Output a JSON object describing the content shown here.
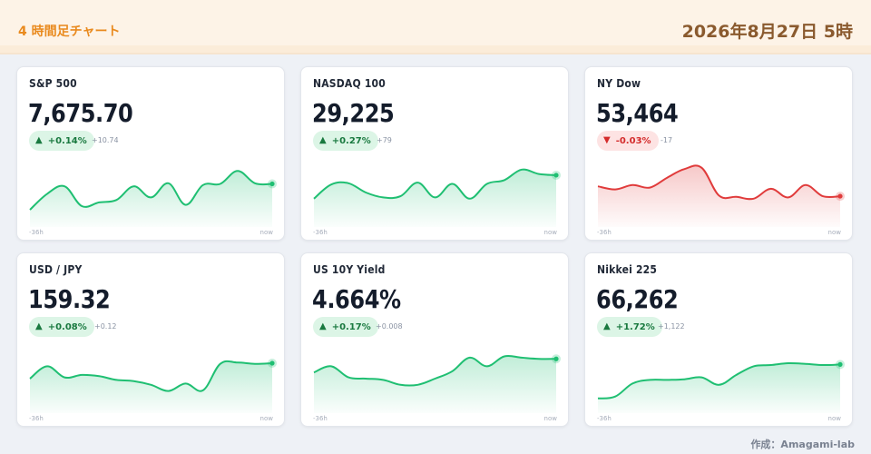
{
  "header": {
    "title": "4 時間足チャート",
    "datetime": "2026年8月27日 5時"
  },
  "footer": {
    "credit": "作成：Amagami-lab"
  },
  "colors": {
    "up": "#1fbf72",
    "down": "#e03b3b"
  },
  "icons": {
    "up": "triangle-up-icon",
    "down": "triangle-down-icon"
  },
  "cards": [
    {
      "name": "S&P 500",
      "value": "7,675.70",
      "pct": "+0.14%",
      "abs": "+10.74",
      "direction": "up",
      "axis_start": "-36h",
      "axis_end": "now"
    },
    {
      "name": "NASDAQ 100",
      "value": "29,225",
      "pct": "+0.27%",
      "abs": "+79",
      "direction": "up",
      "axis_start": "-36h",
      "axis_end": "now"
    },
    {
      "name": "NY Dow",
      "value": "53,464",
      "pct": "-0.03%",
      "abs": "-17",
      "direction": "down",
      "axis_start": "-36h",
      "axis_end": "now"
    },
    {
      "name": "USD / JPY",
      "value": "159.32",
      "pct": "+0.08%",
      "abs": "+0.12",
      "direction": "up",
      "axis_start": "-36h",
      "axis_end": "now"
    },
    {
      "name": "US 10Y Yield",
      "value": "4.664%",
      "pct": "+0.17%",
      "abs": "+0.008",
      "direction": "up",
      "axis_start": "-36h",
      "axis_end": "now"
    },
    {
      "name": "Nikkei 225",
      "value": "66,262",
      "pct": "+1.72%",
      "abs": "+1,122",
      "direction": "up",
      "axis_start": "-36h",
      "axis_end": "now"
    }
  ],
  "chart_data": [
    {
      "type": "area",
      "series": [
        {
          "values": [
            22,
            48,
            60,
            28,
            34,
            38,
            60,
            42,
            65,
            30,
            62,
            64,
            85,
            65,
            64
          ]
        }
      ]
    },
    {
      "type": "area",
      "series": [
        {
          "values": [
            40,
            63,
            65,
            50,
            42,
            44,
            66,
            42,
            64,
            40,
            64,
            70,
            87,
            80,
            78
          ]
        }
      ]
    },
    {
      "type": "area",
      "series": [
        {
          "values": [
            60,
            55,
            62,
            58,
            74,
            88,
            90,
            45,
            43,
            40,
            56,
            42,
            62,
            44,
            44
          ]
        }
      ]
    },
    {
      "type": "area",
      "series": [
        {
          "values": [
            50,
            70,
            52,
            56,
            54,
            48,
            46,
            40,
            30,
            42,
            31,
            74,
            76,
            74,
            75
          ]
        }
      ]
    },
    {
      "type": "area",
      "series": [
        {
          "values": [
            60,
            70,
            52,
            50,
            48,
            40,
            40,
            50,
            62,
            84,
            70,
            86,
            84,
            82,
            82
          ]
        }
      ]
    },
    {
      "type": "area",
      "series": [
        {
          "values": [
            18,
            21,
            42,
            48,
            48,
            49,
            52,
            40,
            56,
            70,
            72,
            75,
            74,
            72,
            73
          ]
        }
      ]
    }
  ]
}
